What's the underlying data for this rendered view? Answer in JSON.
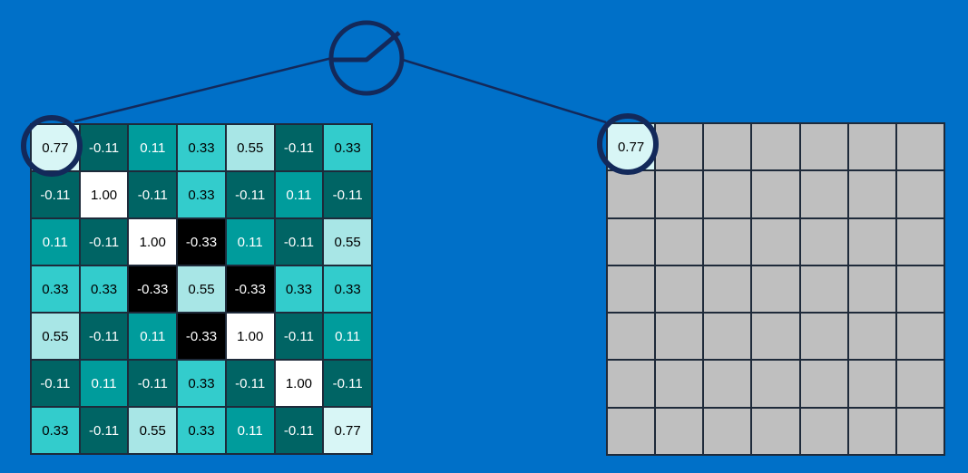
{
  "colors": {
    "background": "#0070c8",
    "dark_teal": "#006464",
    "mid_teal": "#009c9c",
    "bright_teal": "#33cccc",
    "light_teal": "#a8e6e6",
    "pale_teal": "#d8f6f6",
    "white": "#ffffff",
    "black": "#000000",
    "empty_cell": "#bfbfbf",
    "outline": "#13295a"
  },
  "input_grid": [
    [
      "0.77",
      "-0.11",
      "0.11",
      "0.33",
      "0.55",
      "-0.11",
      "0.33"
    ],
    [
      "-0.11",
      "1.00",
      "-0.11",
      "0.33",
      "-0.11",
      "0.11",
      "-0.11"
    ],
    [
      "0.11",
      "-0.11",
      "1.00",
      "-0.33",
      "0.11",
      "-0.11",
      "0.55"
    ],
    [
      "0.33",
      "0.33",
      "-0.33",
      "0.55",
      "-0.33",
      "0.33",
      "0.33"
    ],
    [
      "0.55",
      "-0.11",
      "0.11",
      "-0.33",
      "1.00",
      "-0.11",
      "0.11"
    ],
    [
      "-0.11",
      "0.11",
      "-0.11",
      "0.33",
      "-0.11",
      "1.00",
      "-0.11"
    ],
    [
      "0.33",
      "-0.11",
      "0.55",
      "0.33",
      "0.11",
      "-0.11",
      "0.77"
    ]
  ],
  "output_grid": {
    "rows": 7,
    "cols": 7,
    "filled": [
      {
        "row": 0,
        "col": 0,
        "value": "0.77"
      }
    ]
  },
  "node_icon": "activation-function-icon"
}
